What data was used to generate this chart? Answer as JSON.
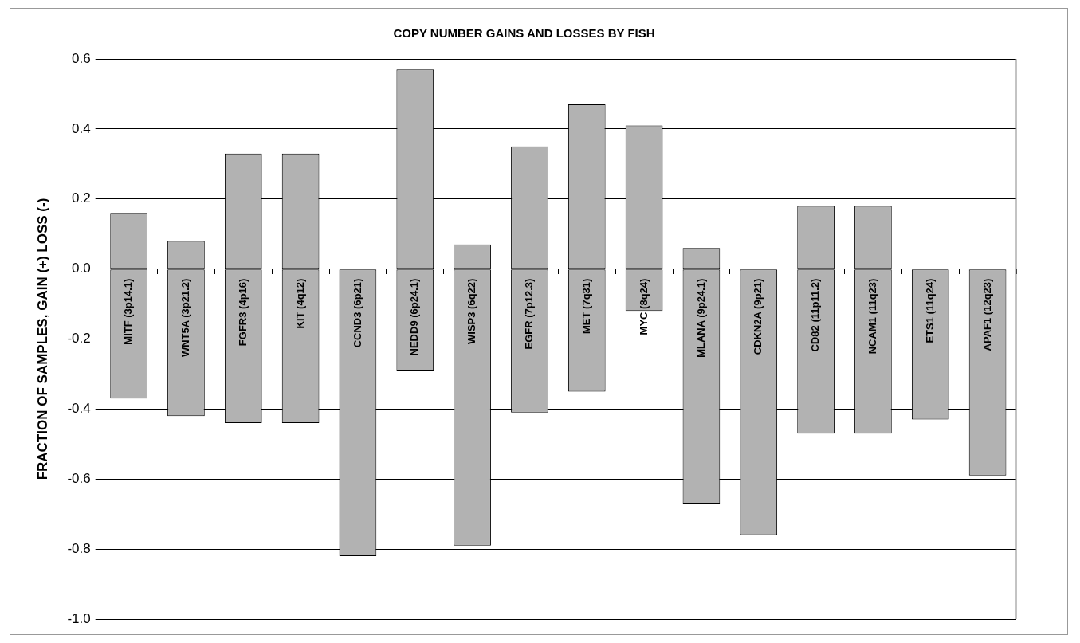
{
  "chart_data": {
    "type": "bar",
    "title": "COPY NUMBER GAINS AND LOSSES BY FISH",
    "ylabel": "FRACTION OF SAMPLES, GAIN (+) LOSS (-)",
    "categories": [
      "MITF (3p14.1)",
      "WNT5A (3p21.2)",
      "FGFR3 (4p16)",
      "KIT (4q12)",
      "CCND3 (6p21)",
      "NEDD9 (6p24.1)",
      "WISP3 (6q22)",
      "EGFR (7p12.3)",
      "MET (7q31)",
      "MYC (8q24)",
      "MLANA (9p24.1)",
      "CDKN2A (9p21)",
      "CD82 (11p11.2)",
      "NCAM1 (11q23)",
      "ETS1 (11q24)",
      "APAF1 (12q23)"
    ],
    "stacked": true,
    "series": [
      {
        "color": "#b2b2b2",
        "values": [
          0.16,
          0.08,
          0.33,
          0.33,
          null,
          0.57,
          0.07,
          0.35,
          0.47,
          0.41,
          0.06,
          null,
          0.18,
          0.18,
          null,
          null
        ]
      },
      {
        "color": "#b2b2b2",
        "values": [
          -0.37,
          -0.42,
          -0.44,
          -0.44,
          -0.82,
          -0.29,
          -0.79,
          -0.41,
          -0.35,
          -0.12,
          -0.67,
          -0.76,
          -0.47,
          -0.47,
          -0.43,
          -0.59
        ]
      }
    ],
    "ylim": [
      -1.0,
      0.6
    ],
    "yticks": [
      {
        "value": -1.0,
        "label": "-1.0"
      },
      -0.8,
      -0.6,
      -0.4,
      -0.2,
      {
        "value": 0,
        "label": "0.0"
      },
      0.2,
      0.4,
      0.6
    ],
    "grid": "y",
    "legend": false
  }
}
